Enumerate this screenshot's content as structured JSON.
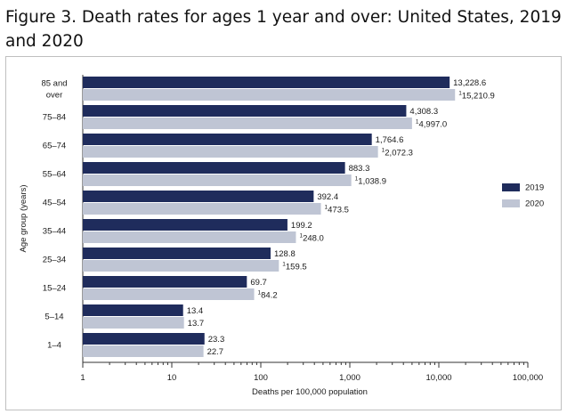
{
  "figure": {
    "title": "Figure 3. Death rates for ages 1 year and over: United States, 2019 and 2020"
  },
  "chart_data": {
    "type": "bar",
    "orientation": "horizontal",
    "xscale": "log",
    "categories": [
      "85 and over",
      "75–84",
      "65–74",
      "55–64",
      "45–54",
      "35–44",
      "25–34",
      "15–24",
      "5–14",
      "1–4"
    ],
    "series": [
      {
        "name": "2019",
        "color": "#1f2c5c",
        "values": [
          13228.6,
          4308.3,
          1764.6,
          883.3,
          392.4,
          199.2,
          128.8,
          69.7,
          13.4,
          23.3
        ],
        "labels": [
          "13,228.6",
          "4,308.3",
          "1,764.6",
          "883.3",
          "392.4",
          "199.2",
          "128.8",
          "69.7",
          "13.4",
          "23.3"
        ],
        "markers": [
          "",
          "",
          "",
          "",
          "",
          "",
          "",
          "",
          "",
          ""
        ]
      },
      {
        "name": "2020",
        "color": "#bfc5d4",
        "values": [
          15210.9,
          4997.0,
          2072.3,
          1038.9,
          473.5,
          248.0,
          159.5,
          84.2,
          13.7,
          22.7
        ],
        "labels": [
          "15,210.9",
          "4,997.0",
          "2,072.3",
          "1,038.9",
          "473.5",
          "248.0",
          "159.5",
          "84.2",
          "13.7",
          "22.7"
        ],
        "markers": [
          "1",
          "1",
          "1",
          "1",
          "1",
          "1",
          "1",
          "1",
          "",
          ""
        ]
      }
    ],
    "xlabel": "Deaths per 100,000 population",
    "ylabel": "Age group (years)",
    "xlim": [
      1,
      100000
    ],
    "xticks": [
      1,
      10,
      100,
      1000,
      10000,
      100000
    ],
    "xtick_labels": [
      "1",
      "10",
      "100",
      "1,000",
      "10,000",
      "100,000"
    ],
    "legend": {
      "position": "right",
      "entries": [
        "2019",
        "2020"
      ]
    },
    "grid": false
  }
}
